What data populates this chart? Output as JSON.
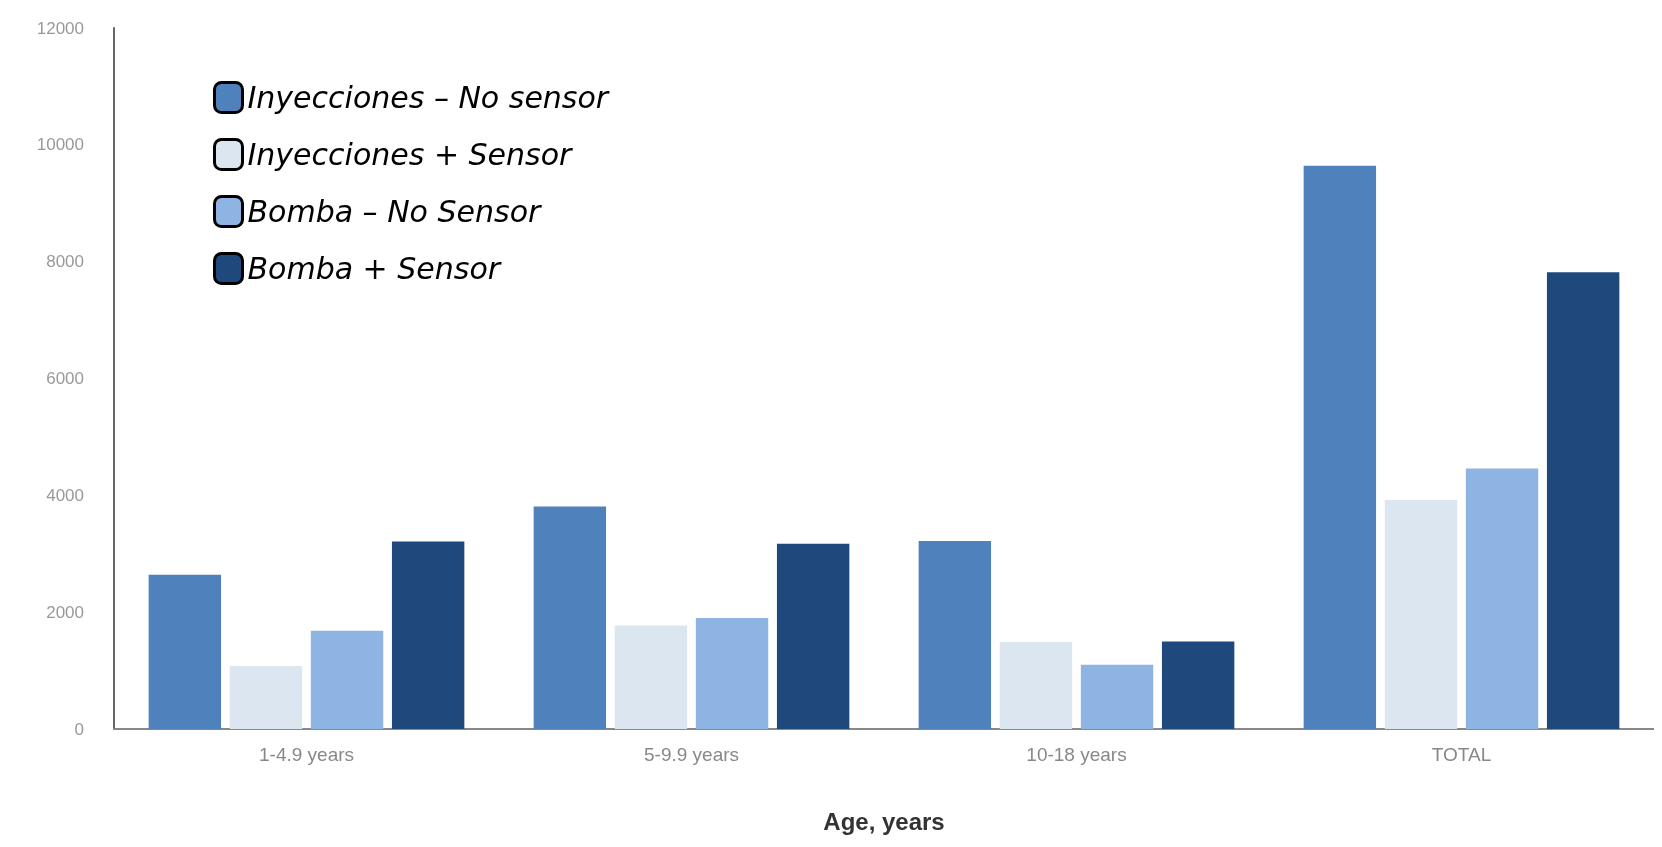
{
  "chart_data": {
    "type": "bar",
    "xlabel": "Age, years",
    "categories": [
      "1-4.9 years",
      "5-9.9 years",
      "10-18 years",
      "TOTAL"
    ],
    "series": [
      {
        "name": "Inyecciones – No sensor",
        "color": "#4f81bd",
        "values": [
          2640,
          3810,
          3220,
          9640
        ]
      },
      {
        "name": "Inyecciones + Sensor",
        "color": "#dce6f1",
        "values": [
          1080,
          1770,
          1490,
          3920
        ]
      },
      {
        "name": "Bomba – No Sensor",
        "color": "#8eb4e3",
        "values": [
          1680,
          1900,
          1100,
          4460
        ]
      },
      {
        "name": "Bomba + Sensor",
        "color": "#1f497d",
        "values": [
          3210,
          3170,
          1500,
          7820
        ]
      }
    ],
    "ylim": [
      0,
      12000
    ],
    "yticks": [
      0,
      2000,
      4000,
      6000,
      8000,
      10000,
      12000
    ],
    "grid": false,
    "legend": "top left"
  }
}
